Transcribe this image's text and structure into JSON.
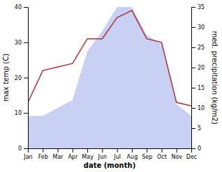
{
  "chart_data": {
    "type": "line",
    "x_label": "date (month)",
    "y_label": "max temp (C)",
    "y2_label": "med. precipitation (kg/m2)",
    "categories": [
      "Jan",
      "Feb",
      "Mar",
      "Apr",
      "May",
      "Jun",
      "Jul",
      "Aug",
      "Sep",
      "Oct",
      "Nov",
      "Dec"
    ],
    "series": [
      {
        "type": "area",
        "axis": "y2",
        "color": "#c8d0f4",
        "values": [
          8,
          8,
          10,
          12,
          24,
          29,
          35,
          35,
          28,
          26,
          11,
          8
        ]
      },
      {
        "type": "line",
        "color": "#b03030",
        "values": [
          13,
          22,
          23,
          24,
          31,
          31,
          37,
          39,
          31,
          30,
          13,
          12
        ]
      }
    ],
    "ylim": [
      0,
      40
    ],
    "yticks": [
      0,
      10,
      20,
      30,
      40
    ],
    "y2lim": [
      0,
      35
    ],
    "y2ticks": [
      0,
      5,
      10,
      15,
      20,
      25,
      30,
      35
    ],
    "grid": false
  }
}
